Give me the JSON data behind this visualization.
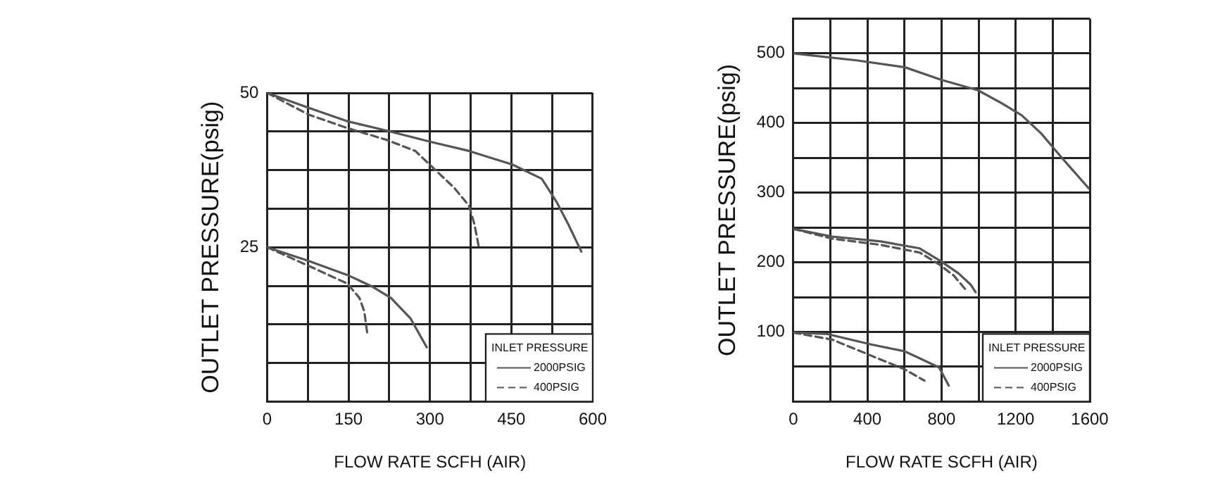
{
  "chart_data": [
    {
      "type": "line",
      "xlabel": "FLOW RATE SCFH (AIR)",
      "ylabel": "OUTLET PRESSURE(psig)",
      "legend_title": "INLET PRESSURE",
      "legend": "bottom right",
      "grid": true,
      "marker": "none",
      "xlim": [
        0,
        600
      ],
      "xticks": [
        0,
        {
          "value": 75,
          "label": null
        },
        150,
        {
          "value": 225,
          "label": null
        },
        300,
        {
          "value": 375,
          "label": null
        },
        450,
        {
          "value": 525,
          "label": null
        },
        600
      ],
      "ylim": [
        0,
        50
      ],
      "yticks": [
        {
          "value": 0,
          "label": null
        },
        {
          "value": 6.25,
          "label": null
        },
        {
          "value": 12.5,
          "label": null
        },
        {
          "value": 18.75,
          "label": null
        },
        25,
        {
          "value": 31.25,
          "label": null
        },
        {
          "value": 37.5,
          "label": null
        },
        {
          "value": 43.75,
          "label": null
        },
        50
      ],
      "series": [
        {
          "name": "2000PSIG",
          "color": "#555555",
          "line_style": "solid",
          "x": [
            0,
            76,
            148,
            220,
            300,
            372,
            452,
            506,
            533,
            555,
            579
          ],
          "values": [
            50,
            47.6,
            45.4,
            43.9,
            42.1,
            40.6,
            38.4,
            36.1,
            32.4,
            28.7,
            24.3
          ]
        },
        {
          "name": "400PSIG",
          "color": "#555555",
          "line_style": "dashed",
          "x": [
            0,
            76,
            148,
            220,
            273,
            309,
            345,
            372,
            382,
            391
          ],
          "values": [
            50,
            46.5,
            44.3,
            42.4,
            40.6,
            37.6,
            34.6,
            31.7,
            28.7,
            24.6
          ]
        },
        {
          "color": "#555555",
          "line_style": "solid",
          "x": [
            0,
            76,
            148,
            192,
            228,
            264,
            294
          ],
          "values": [
            25,
            22.8,
            20.5,
            18.7,
            16.8,
            13.5,
            8.8
          ]
        },
        {
          "color": "#555555",
          "line_style": "dashed",
          "x": [
            0,
            76,
            148,
            170,
            179,
            185
          ],
          "values": [
            25,
            22,
            19.1,
            16.8,
            14.6,
            10.7
          ]
        }
      ]
    },
    {
      "type": "line",
      "xlabel": "FLOW RATE SCFH (AIR)",
      "ylabel": "OUTLET PRESSURE(psig)",
      "legend_title": "INLET PRESSURE",
      "legend": "bottom right",
      "grid": true,
      "marker": "none",
      "xlim": [
        0,
        1600
      ],
      "xticks": [
        0,
        {
          "value": 200,
          "label": null
        },
        400,
        {
          "value": 600,
          "label": null
        },
        800,
        {
          "value": 1000,
          "label": null
        },
        1200,
        {
          "value": 1400,
          "label": null
        },
        1600
      ],
      "ylim": [
        0,
        550
      ],
      "yticks": [
        {
          "value": 0,
          "label": null
        },
        {
          "value": 50,
          "label": null
        },
        100,
        {
          "value": 150,
          "label": null
        },
        200,
        {
          "value": 250,
          "label": null
        },
        300,
        {
          "value": 350,
          "label": null
        },
        400,
        {
          "value": 450,
          "label": null
        },
        500,
        {
          "value": 550,
          "label": null
        }
      ],
      "series": [
        {
          "color": "#555555",
          "line_style": "solid",
          "x": [
            0,
            341,
            603,
            800,
            997,
            1128,
            1233,
            1338,
            1443,
            1595
          ],
          "values": [
            500,
            490,
            480,
            462,
            447,
            428,
            411,
            385,
            352,
            306
          ]
        },
        {
          "name": "2000PSIG",
          "color": "#555555",
          "line_style": "solid",
          "x": [
            0,
            210,
            472,
            682,
            800,
            892,
            957,
            984
          ],
          "values": [
            248,
            237,
            230,
            220,
            201,
            184,
            168,
            157
          ]
        },
        {
          "name": "400PSIG",
          "color": "#555555",
          "line_style": "dashed",
          "x": [
            0,
            210,
            472,
            682,
            787,
            866,
            939
          ],
          "values": [
            248,
            234,
            225,
            214,
            197,
            181,
            158
          ]
        },
        {
          "color": "#555555",
          "line_style": "solid",
          "x": [
            0,
            184,
            420,
            603,
            787,
            839
          ],
          "values": [
            99,
            97,
            82,
            72,
            49,
            23
          ]
        },
        {
          "color": "#555555",
          "line_style": "dashed",
          "x": [
            0,
            210,
            420,
            603,
            708
          ],
          "values": [
            99,
            89,
            66,
            46,
            30
          ]
        }
      ]
    }
  ]
}
